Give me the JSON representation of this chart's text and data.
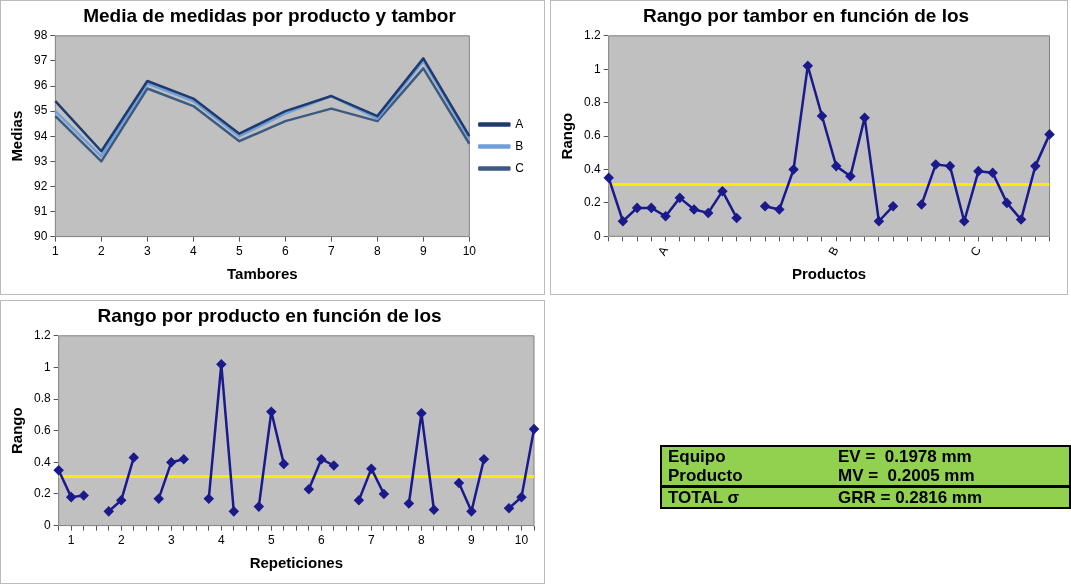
{
  "chart_data": [
    {
      "type": "line",
      "title": "Media de medidas por producto y tambor",
      "xlabel": "Tambores",
      "ylabel": "Medias",
      "categories": [
        "1",
        "2",
        "3",
        "4",
        "5",
        "6",
        "7",
        "8",
        "9",
        "10"
      ],
      "ylim": [
        90,
        98
      ],
      "yticks": [
        90,
        91,
        92,
        93,
        94,
        95,
        96,
        97,
        98
      ],
      "legend": "right",
      "series": [
        {
          "name": "A",
          "color": "#1f3a6e",
          "values": [
            95.4,
            93.4,
            96.2,
            95.5,
            94.1,
            95.0,
            95.6,
            94.8,
            97.1,
            94.0
          ]
        },
        {
          "name": "B",
          "color": "#6f9fd8",
          "values": [
            95.0,
            93.2,
            96.1,
            95.4,
            94.0,
            94.9,
            95.6,
            94.7,
            97.0,
            93.9
          ]
        },
        {
          "name": "C",
          "color": "#3d5a80",
          "values": [
            94.8,
            93.0,
            95.9,
            95.2,
            93.8,
            94.6,
            95.1,
            94.6,
            96.7,
            93.7
          ]
        }
      ]
    },
    {
      "type": "line",
      "title": "Rango por tambor en función de los",
      "xlabel": "Productos",
      "ylabel": "Rango",
      "categories": [
        null,
        null,
        null,
        null,
        "A",
        null,
        null,
        null,
        null,
        null,
        null,
        null,
        null,
        null,
        null,
        null,
        "B",
        null,
        null,
        null,
        null,
        null,
        null,
        null,
        null,
        null,
        "C",
        null,
        null,
        null,
        null,
        null
      ],
      "ylim": [
        0,
        1.2
      ],
      "yticks": [
        0,
        0.2,
        0.4,
        0.6,
        0.8,
        1,
        1.2
      ],
      "marker": "diamond",
      "color": "#1a1a8c",
      "values": [
        0.35,
        0.09,
        0.17,
        0.17,
        0.12,
        0.23,
        0.16,
        0.14,
        0.27,
        0.11,
        null,
        0.18,
        0.16,
        0.4,
        1.02,
        0.72,
        0.42,
        0.36,
        0.71,
        0.09,
        0.18,
        null,
        0.19,
        0.43,
        0.42,
        0.09,
        0.39,
        0.38,
        0.2,
        0.1,
        0.42,
        0.61
      ],
      "ref_lines": [
        {
          "axis": "y",
          "value": 0.31,
          "color": "#f0f000"
        }
      ]
    },
    {
      "type": "line",
      "title": "Rango por producto en función de los",
      "xlabel": "Repeticiones",
      "ylabel": "Rango",
      "categories": [
        null,
        "1",
        null,
        null,
        null,
        "2",
        null,
        null,
        null,
        "3",
        null,
        null,
        null,
        "4",
        null,
        null,
        null,
        "5",
        null,
        null,
        null,
        "6",
        null,
        null,
        null,
        "7",
        null,
        null,
        null,
        "8",
        null,
        null,
        null,
        "9",
        null,
        null,
        null,
        "10",
        null
      ],
      "ylim": [
        0,
        1.2
      ],
      "yticks": [
        0,
        0.2,
        0.4,
        0.6,
        0.8,
        1,
        1.2
      ],
      "marker": "diamond",
      "color": "#1a1a8c",
      "values": [
        0.35,
        0.18,
        0.19,
        null,
        0.09,
        0.16,
        0.43,
        null,
        0.17,
        0.4,
        0.42,
        null,
        0.17,
        1.02,
        0.09,
        null,
        0.12,
        0.72,
        0.39,
        null,
        0.23,
        0.42,
        0.38,
        null,
        0.16,
        0.36,
        0.2,
        null,
        0.14,
        0.71,
        0.1,
        null,
        0.27,
        0.09,
        0.42,
        null,
        0.11,
        0.18,
        0.61
      ],
      "ref_lines": [
        {
          "axis": "y",
          "value": 0.31,
          "color": "#f0f000"
        }
      ]
    },
    {
      "type": "other",
      "annotations": [
        "Equipo",
        "EV =  0.1978 mm",
        "Producto",
        "MV =  0.2005 mm",
        "TOTAL σ",
        "GRR = 0.2816 mm"
      ]
    }
  ]
}
